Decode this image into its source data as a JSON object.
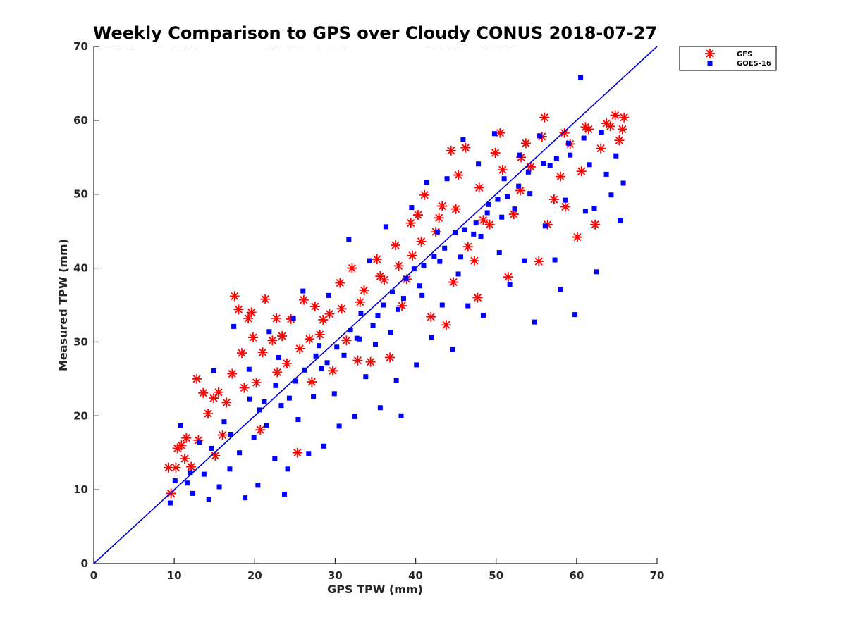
{
  "chart_data": {
    "type": "scatter",
    "title": "Weekly Comparison to GPS over Cloudy CONUS 2018-07-27",
    "xlabel": "GPS TPW (mm)",
    "ylabel": "Measured TPW (mm)",
    "xlim": [
      0,
      70
    ],
    "ylim": [
      0,
      70
    ],
    "xticks": [
      "0",
      "10",
      "20",
      "30",
      "40",
      "50",
      "60",
      "70"
    ],
    "yticks": [
      "0",
      "10",
      "20",
      "30",
      "40",
      "50",
      "60",
      "70"
    ],
    "grid": false,
    "legend_position": "outside-top-right",
    "reference_line": {
      "x": [
        0,
        70
      ],
      "y": [
        0,
        70
      ],
      "color": "#0000d8"
    },
    "stats": [
      [
        "GFS Bias = 0.20972",
        "GFS StD = 3.3124",
        "GFS RMS = 3.3191"
      ],
      [
        "GOES-16 Bias = -2.0142",
        "GOES-16 StD = 4.4765",
        "GOES-16 RMS = 4.9088"
      ],
      [
        "Sample Size = 10199",
        "Mean GPS = 34.7655",
        ""
      ]
    ],
    "series": [
      {
        "name": "GFS",
        "marker": "asterisk",
        "color": "#ff0000",
        "points": [
          [
            9.3,
            13.0
          ],
          [
            9.6,
            9.5
          ],
          [
            10.4,
            15.6
          ],
          [
            10.9,
            16.0
          ],
          [
            11.3,
            14.2
          ],
          [
            12.1,
            13.1
          ],
          [
            12.8,
            25.0
          ],
          [
            13.6,
            23.1
          ],
          [
            14.2,
            20.3
          ],
          [
            14.9,
            22.4
          ],
          [
            15.5,
            23.2
          ],
          [
            16.0,
            17.4
          ],
          [
            17.2,
            25.7
          ],
          [
            17.5,
            36.2
          ],
          [
            18.0,
            34.4
          ],
          [
            18.4,
            28.5
          ],
          [
            18.7,
            23.8
          ],
          [
            19.2,
            33.2
          ],
          [
            19.6,
            34.0
          ],
          [
            20.2,
            24.5
          ],
          [
            21.0,
            28.6
          ],
          [
            21.3,
            35.8
          ],
          [
            22.2,
            30.2
          ],
          [
            22.7,
            33.2
          ],
          [
            23.4,
            30.8
          ],
          [
            24.0,
            27.1
          ],
          [
            24.5,
            33.1
          ],
          [
            25.3,
            15.0
          ],
          [
            26.1,
            35.7
          ],
          [
            26.8,
            30.4
          ],
          [
            27.5,
            34.8
          ],
          [
            28.5,
            33.0
          ],
          [
            29.3,
            33.8
          ],
          [
            29.7,
            26.1
          ],
          [
            30.6,
            38.0
          ],
          [
            31.4,
            30.2
          ],
          [
            32.1,
            40.0
          ],
          [
            32.8,
            27.5
          ],
          [
            33.6,
            37.0
          ],
          [
            34.4,
            27.3
          ],
          [
            35.2,
            41.2
          ],
          [
            36.1,
            38.4
          ],
          [
            36.8,
            27.9
          ],
          [
            37.5,
            43.1
          ],
          [
            38.3,
            34.9
          ],
          [
            38.9,
            38.5
          ],
          [
            39.6,
            41.7
          ],
          [
            40.3,
            47.2
          ],
          [
            41.1,
            49.9
          ],
          [
            41.9,
            33.4
          ],
          [
            42.5,
            44.9
          ],
          [
            43.3,
            48.4
          ],
          [
            43.8,
            32.3
          ],
          [
            44.4,
            55.9
          ],
          [
            45.3,
            52.6
          ],
          [
            46.2,
            56.3
          ],
          [
            46.5,
            42.9
          ],
          [
            47.3,
            41.0
          ],
          [
            47.7,
            36.0
          ],
          [
            48.4,
            46.5
          ],
          [
            49.2,
            45.9
          ],
          [
            49.9,
            55.6
          ],
          [
            50.5,
            58.3
          ],
          [
            51.5,
            38.8
          ],
          [
            52.2,
            47.3
          ],
          [
            53.0,
            50.5
          ],
          [
            53.7,
            56.9
          ],
          [
            54.3,
            53.7
          ],
          [
            55.3,
            40.9
          ],
          [
            56.0,
            60.4
          ],
          [
            56.4,
            45.9
          ],
          [
            57.2,
            49.3
          ],
          [
            58.0,
            52.4
          ],
          [
            58.6,
            48.3
          ],
          [
            59.2,
            56.8
          ],
          [
            60.1,
            44.2
          ],
          [
            60.6,
            53.1
          ],
          [
            61.5,
            58.8
          ],
          [
            62.3,
            45.9
          ],
          [
            63.0,
            56.2
          ],
          [
            63.7,
            59.6
          ],
          [
            64.2,
            59.2
          ],
          [
            64.8,
            60.7
          ],
          [
            65.3,
            57.3
          ],
          [
            65.7,
            58.8
          ],
          [
            65.9,
            60.4
          ],
          [
            10.2,
            13.0
          ],
          [
            11.5,
            17.0
          ],
          [
            13.0,
            16.7
          ],
          [
            15.1,
            14.6
          ],
          [
            16.5,
            21.8
          ],
          [
            19.8,
            30.6
          ],
          [
            22.8,
            25.9
          ],
          [
            25.6,
            29.1
          ],
          [
            28.1,
            31.0
          ],
          [
            30.8,
            34.5
          ],
          [
            33.1,
            35.4
          ],
          [
            35.6,
            38.9
          ],
          [
            37.9,
            40.3
          ],
          [
            40.7,
            43.6
          ],
          [
            42.9,
            46.8
          ],
          [
            45.0,
            48.0
          ],
          [
            47.9,
            50.9
          ],
          [
            50.8,
            53.3
          ],
          [
            53.1,
            55.0
          ],
          [
            55.7,
            57.8
          ],
          [
            58.5,
            58.3
          ],
          [
            61.1,
            59.1
          ],
          [
            44.7,
            38.1
          ],
          [
            39.4,
            46.1
          ],
          [
            27.1,
            24.6
          ],
          [
            20.7,
            18.1
          ]
        ]
      },
      {
        "name": "GOES-16",
        "marker": "square",
        "color": "#0000ff",
        "points": [
          [
            9.5,
            8.2
          ],
          [
            10.1,
            11.2
          ],
          [
            10.8,
            18.7
          ],
          [
            11.6,
            10.9
          ],
          [
            12.3,
            9.5
          ],
          [
            13.1,
            16.4
          ],
          [
            13.7,
            12.1
          ],
          [
            14.3,
            8.7
          ],
          [
            14.9,
            26.1
          ],
          [
            15.6,
            10.4
          ],
          [
            16.2,
            19.2
          ],
          [
            16.9,
            12.8
          ],
          [
            17.4,
            32.1
          ],
          [
            18.1,
            15.0
          ],
          [
            18.8,
            8.9
          ],
          [
            19.3,
            26.3
          ],
          [
            19.9,
            17.1
          ],
          [
            20.4,
            10.6
          ],
          [
            21.2,
            21.9
          ],
          [
            21.8,
            31.4
          ],
          [
            22.5,
            14.2
          ],
          [
            23.0,
            27.9
          ],
          [
            23.7,
            9.4
          ],
          [
            24.1,
            12.8
          ],
          [
            24.8,
            33.2
          ],
          [
            25.4,
            19.5
          ],
          [
            26.0,
            36.9
          ],
          [
            26.7,
            14.9
          ],
          [
            27.3,
            22.6
          ],
          [
            28.0,
            29.5
          ],
          [
            28.6,
            15.9
          ],
          [
            29.2,
            36.3
          ],
          [
            29.9,
            23.0
          ],
          [
            30.5,
            18.6
          ],
          [
            31.1,
            28.2
          ],
          [
            31.7,
            43.9
          ],
          [
            32.4,
            19.9
          ],
          [
            33.0,
            30.4
          ],
          [
            33.8,
            25.3
          ],
          [
            34.3,
            41.0
          ],
          [
            35.0,
            29.7
          ],
          [
            35.6,
            21.1
          ],
          [
            36.3,
            45.6
          ],
          [
            36.9,
            31.3
          ],
          [
            37.6,
            24.8
          ],
          [
            38.2,
            20.0
          ],
          [
            38.8,
            38.6
          ],
          [
            39.5,
            48.2
          ],
          [
            40.1,
            26.9
          ],
          [
            40.8,
            36.3
          ],
          [
            41.4,
            51.6
          ],
          [
            42.0,
            30.6
          ],
          [
            42.7,
            44.9
          ],
          [
            43.3,
            35.0
          ],
          [
            43.9,
            52.1
          ],
          [
            44.6,
            29.0
          ],
          [
            45.3,
            39.2
          ],
          [
            45.9,
            57.4
          ],
          [
            46.5,
            34.9
          ],
          [
            47.2,
            44.6
          ],
          [
            47.8,
            54.1
          ],
          [
            48.4,
            33.6
          ],
          [
            49.1,
            48.6
          ],
          [
            49.8,
            58.2
          ],
          [
            50.4,
            42.1
          ],
          [
            51.0,
            52.1
          ],
          [
            51.7,
            37.8
          ],
          [
            52.3,
            48.0
          ],
          [
            52.9,
            55.3
          ],
          [
            53.5,
            41.0
          ],
          [
            54.2,
            50.1
          ],
          [
            54.8,
            32.7
          ],
          [
            55.4,
            57.9
          ],
          [
            56.1,
            45.7
          ],
          [
            56.7,
            53.9
          ],
          [
            57.3,
            41.1
          ],
          [
            58.0,
            37.1
          ],
          [
            58.6,
            49.2
          ],
          [
            59.2,
            55.3
          ],
          [
            59.8,
            33.7
          ],
          [
            60.5,
            65.8
          ],
          [
            61.1,
            47.7
          ],
          [
            61.6,
            54.0
          ],
          [
            62.2,
            48.1
          ],
          [
            62.5,
            39.5
          ],
          [
            63.1,
            58.4
          ],
          [
            63.7,
            52.7
          ],
          [
            64.3,
            49.9
          ],
          [
            64.9,
            55.2
          ],
          [
            65.4,
            46.4
          ],
          [
            65.8,
            51.5
          ],
          [
            12.0,
            12.3
          ],
          [
            14.6,
            15.6
          ],
          [
            17.0,
            17.5
          ],
          [
            19.4,
            22.3
          ],
          [
            21.5,
            18.7
          ],
          [
            22.6,
            24.1
          ],
          [
            24.3,
            22.4
          ],
          [
            26.2,
            26.2
          ],
          [
            27.6,
            28.1
          ],
          [
            29.0,
            27.2
          ],
          [
            30.2,
            29.3
          ],
          [
            31.9,
            31.6
          ],
          [
            33.2,
            33.9
          ],
          [
            34.7,
            32.2
          ],
          [
            36.0,
            35.0
          ],
          [
            37.1,
            36.8
          ],
          [
            38.5,
            35.9
          ],
          [
            39.8,
            39.9
          ],
          [
            41.0,
            40.3
          ],
          [
            42.3,
            41.6
          ],
          [
            43.6,
            42.7
          ],
          [
            44.9,
            44.8
          ],
          [
            46.1,
            45.2
          ],
          [
            47.5,
            46.1
          ],
          [
            48.9,
            47.5
          ],
          [
            50.2,
            49.3
          ],
          [
            51.4,
            49.7
          ],
          [
            52.8,
            51.1
          ],
          [
            54.0,
            53.0
          ],
          [
            55.9,
            54.2
          ],
          [
            57.5,
            54.8
          ],
          [
            59.0,
            56.9
          ],
          [
            60.9,
            57.6
          ],
          [
            20.6,
            20.8
          ],
          [
            23.3,
            21.4
          ],
          [
            25.1,
            24.7
          ],
          [
            28.3,
            26.4
          ],
          [
            32.7,
            30.5
          ],
          [
            35.3,
            33.6
          ],
          [
            37.8,
            34.4
          ],
          [
            40.5,
            37.6
          ],
          [
            43.0,
            40.9
          ],
          [
            45.6,
            41.5
          ],
          [
            48.1,
            44.3
          ],
          [
            50.7,
            46.9
          ]
        ]
      }
    ]
  }
}
